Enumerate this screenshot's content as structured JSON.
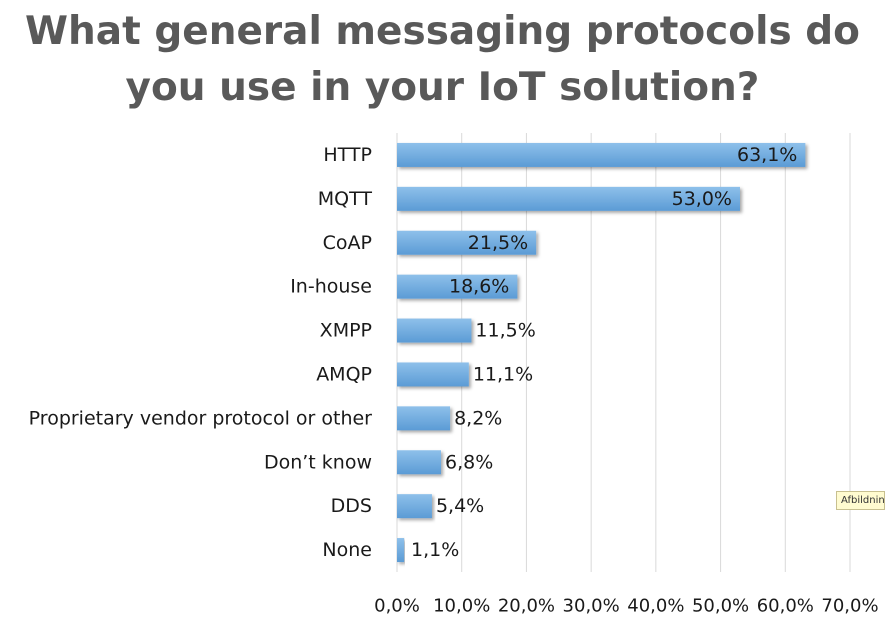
{
  "chart_data": {
    "type": "bar",
    "orientation": "horizontal",
    "title": "What general messaging protocols do\nyou use in your IoT solution?",
    "categories": [
      "HTTP",
      "MQTT",
      "CoAP",
      "In-house",
      "XMPP",
      "AMQP",
      "Proprietary vendor protocol or other",
      "Don’t know",
      "DDS",
      "None"
    ],
    "values": [
      63.1,
      53.0,
      21.5,
      18.6,
      11.5,
      11.1,
      8.2,
      6.8,
      5.4,
      1.1
    ],
    "value_labels": [
      "63,1%",
      "53,0%",
      "21,5%",
      "18,6%",
      "11,5%",
      "11,1%",
      "8,2%",
      "6,8%",
      "5,4%",
      "1,1%"
    ],
    "xlim": [
      0,
      70
    ],
    "x_ticks": [
      0,
      10,
      20,
      30,
      40,
      50,
      60,
      70
    ],
    "x_tick_labels": [
      "0,0%",
      "10,0%",
      "20,0%",
      "30,0%",
      "40,0%",
      "50,0%",
      "60,0%",
      "70,0%"
    ],
    "grid": true,
    "colors": {
      "bar": "#5b9bd5",
      "bar_light": "#8ec0ea",
      "grid": "#d9d9d9",
      "text": "#1a1a1a",
      "title": "#595959"
    }
  },
  "tooltip": {
    "text": "Afbildning"
  }
}
